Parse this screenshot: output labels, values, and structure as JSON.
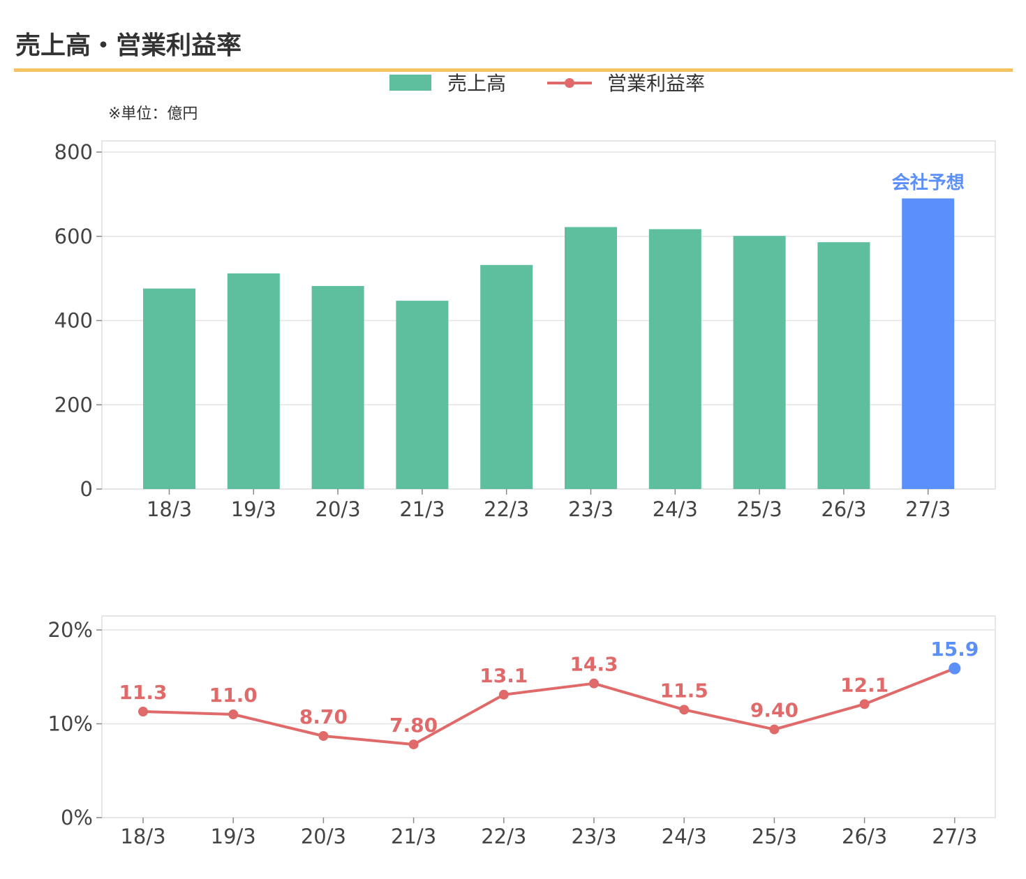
{
  "title": "売上高・営業利益率",
  "unit_note": "※単位：億円",
  "colors": {
    "bar": "#5dbf9d",
    "forecast": "#5b8ff9",
    "line": "#e06a6a",
    "accent_rule": "#f2c462",
    "grid": "#e3e3e3"
  },
  "chart_data": [
    {
      "type": "bar",
      "categories": [
        "18/3",
        "19/3",
        "20/3",
        "21/3",
        "22/3",
        "23/3",
        "24/3",
        "25/3",
        "26/3",
        "27/3"
      ],
      "series": [
        {
          "name": "売上高",
          "values": [
            476,
            512,
            482,
            447,
            532,
            622,
            617,
            601,
            586,
            690
          ]
        }
      ],
      "forecast_index": 9,
      "forecast_label": "会社予想",
      "ylim": [
        0,
        800
      ],
      "yticks": [
        "0",
        "200",
        "400",
        "600",
        "800"
      ],
      "grid": true,
      "legend": "top-center"
    },
    {
      "type": "line",
      "categories": [
        "18/3",
        "19/3",
        "20/3",
        "21/3",
        "22/3",
        "23/3",
        "24/3",
        "25/3",
        "26/3",
        "27/3"
      ],
      "series": [
        {
          "name": "営業利益率",
          "values": [
            11.3,
            11.0,
            8.7,
            7.8,
            13.1,
            14.3,
            11.5,
            9.4,
            12.1,
            15.9
          ],
          "labels": [
            "11.3",
            "11.0",
            "8.70",
            "7.80",
            "13.1",
            "14.3",
            "11.5",
            "9.40",
            "12.1",
            "15.9"
          ]
        }
      ],
      "forecast_index": 9,
      "ylim": [
        0,
        20
      ],
      "yticks": [
        "0%",
        "10%",
        "20%"
      ],
      "grid": true
    }
  ]
}
